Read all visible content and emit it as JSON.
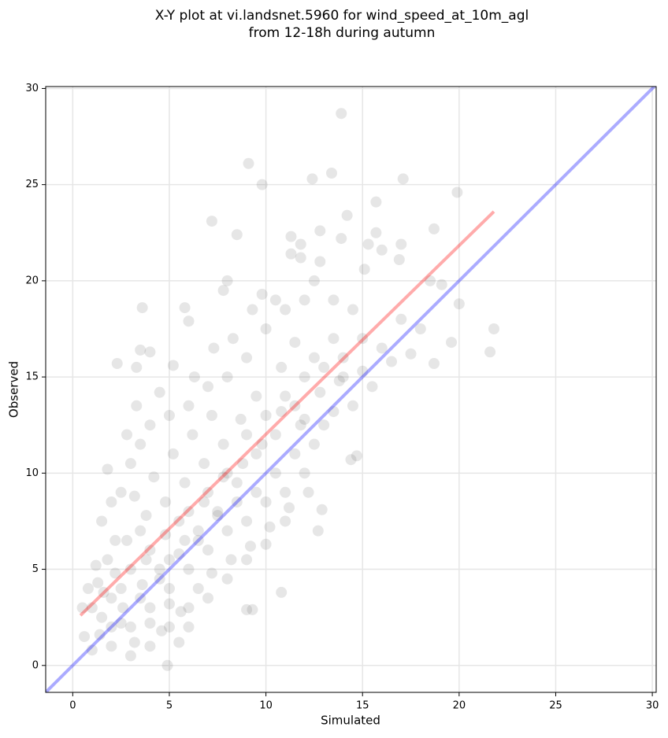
{
  "chart_data": {
    "type": "scatter",
    "title": [
      "X-Y plot at vi.landsnet.5960 for wind_speed_at_10m_agl",
      "from 12-18h during autumn"
    ],
    "x_label": "Simulated",
    "y_label": "Observed",
    "xlim": [
      -1.4,
      30.2
    ],
    "ylim": [
      -1.4,
      30.1
    ],
    "xticks": [
      0,
      5,
      10,
      15,
      20,
      25,
      30
    ],
    "yticks": [
      0,
      5,
      10,
      15,
      20,
      25,
      30
    ],
    "grid": true,
    "point_color": "#555555",
    "points": [
      [
        13.9,
        28.7
      ],
      [
        9.1,
        26.1
      ],
      [
        9.8,
        25.0
      ],
      [
        13.4,
        25.6
      ],
      [
        12.4,
        25.3
      ],
      [
        17.1,
        25.3
      ],
      [
        19.9,
        24.6
      ],
      [
        15.7,
        24.1
      ],
      [
        14.2,
        23.4
      ],
      [
        7.2,
        23.1
      ],
      [
        8.5,
        22.4
      ],
      [
        12.8,
        22.6
      ],
      [
        15.7,
        22.5
      ],
      [
        18.7,
        22.7
      ],
      [
        11.3,
        22.3
      ],
      [
        13.9,
        22.2
      ],
      [
        17.0,
        21.9
      ],
      [
        16.0,
        21.6
      ],
      [
        11.8,
        21.9
      ],
      [
        15.3,
        21.9
      ],
      [
        11.3,
        21.4
      ],
      [
        11.8,
        21.2
      ],
      [
        16.9,
        21.1
      ],
      [
        12.8,
        21.0
      ],
      [
        15.1,
        20.6
      ],
      [
        18.5,
        20.0
      ],
      [
        20.0,
        18.8
      ],
      [
        19.1,
        19.8
      ],
      [
        21.8,
        17.5
      ],
      [
        21.6,
        16.3
      ],
      [
        19.6,
        16.8
      ],
      [
        18.7,
        15.7
      ],
      [
        14.7,
        10.9
      ],
      [
        14.4,
        10.7
      ],
      [
        12.7,
        7.0
      ],
      [
        12.9,
        8.1
      ],
      [
        10.8,
        3.8
      ],
      [
        9.3,
        2.9
      ],
      [
        9.0,
        2.9
      ],
      [
        4.9,
        0.0
      ],
      [
        3.6,
        18.6
      ],
      [
        3.3,
        15.5
      ],
      [
        2.3,
        15.7
      ],
      [
        3.5,
        16.4
      ],
      [
        4.0,
        16.3
      ],
      [
        5.8,
        18.6
      ],
      [
        6.0,
        17.9
      ],
      [
        1.0,
        3.0
      ],
      [
        1.5,
        2.5
      ],
      [
        2.0,
        3.5
      ],
      [
        2.5,
        4.0
      ],
      [
        3.0,
        5.0
      ],
      [
        1.2,
        5.2
      ],
      [
        0.8,
        4.0
      ],
      [
        2.2,
        6.5
      ],
      [
        3.5,
        7.0
      ],
      [
        4.0,
        6.0
      ],
      [
        4.5,
        5.0
      ],
      [
        5.0,
        5.5
      ],
      [
        5.5,
        7.5
      ],
      [
        6.0,
        8.0
      ],
      [
        6.5,
        6.5
      ],
      [
        7.0,
        9.0
      ],
      [
        7.5,
        8.0
      ],
      [
        8.0,
        10.0
      ],
      [
        8.5,
        9.5
      ],
      [
        9.0,
        12.0
      ],
      [
        9.5,
        11.0
      ],
      [
        10.0,
        13.0
      ],
      [
        10.5,
        12.0
      ],
      [
        11.0,
        14.0
      ],
      [
        11.5,
        13.5
      ],
      [
        12.0,
        15.0
      ],
      [
        12.5,
        16.0
      ],
      [
        13.0,
        15.5
      ],
      [
        13.5,
        17.0
      ],
      [
        14.0,
        16.0
      ],
      [
        2.0,
        1.0
      ],
      [
        3.0,
        2.0
      ],
      [
        4.0,
        3.0
      ],
      [
        5.0,
        4.0
      ],
      [
        6.0,
        5.0
      ],
      [
        7.0,
        6.0
      ],
      [
        8.0,
        7.0
      ],
      [
        9.0,
        7.5
      ],
      [
        10.0,
        8.5
      ],
      [
        11.0,
        9.0
      ],
      [
        12.0,
        10.0
      ],
      [
        13.0,
        12.5
      ],
      [
        1.5,
        7.5
      ],
      [
        2.5,
        9.0
      ],
      [
        3.0,
        10.5
      ],
      [
        3.5,
        11.5
      ],
      [
        4.0,
        12.5
      ],
      [
        5.0,
        13.0
      ],
      [
        6.0,
        13.5
      ],
      [
        7.0,
        14.5
      ],
      [
        8.0,
        15.0
      ],
      [
        9.0,
        16.0
      ],
      [
        10.0,
        17.5
      ],
      [
        11.0,
        18.5
      ],
      [
        12.0,
        19.0
      ],
      [
        6.0,
        2.0
      ],
      [
        7.0,
        3.5
      ],
      [
        8.0,
        4.5
      ],
      [
        9.0,
        5.5
      ],
      [
        10.0,
        6.3
      ],
      [
        11.0,
        7.5
      ],
      [
        3.0,
        0.5
      ],
      [
        4.0,
        1.0
      ],
      [
        5.0,
        2.0
      ],
      [
        5.5,
        1.2
      ],
      [
        6.5,
        4.0
      ],
      [
        2.0,
        8.5
      ],
      [
        1.8,
        10.2
      ],
      [
        2.8,
        12.0
      ],
      [
        3.3,
        13.5
      ],
      [
        4.5,
        14.2
      ],
      [
        5.2,
        15.6
      ],
      [
        6.3,
        15.0
      ],
      [
        7.3,
        16.5
      ],
      [
        8.3,
        17.0
      ],
      [
        9.3,
        18.5
      ],
      [
        9.8,
        19.3
      ],
      [
        8.0,
        20.0
      ],
      [
        7.8,
        19.5
      ],
      [
        10.5,
        19.0
      ],
      [
        12.5,
        20.0
      ],
      [
        13.5,
        19.0
      ],
      [
        14.5,
        18.5
      ],
      [
        15.0,
        17.0
      ],
      [
        16.0,
        16.5
      ],
      [
        17.0,
        18.0
      ],
      [
        18.0,
        17.5
      ],
      [
        17.5,
        16.2
      ],
      [
        16.5,
        15.8
      ],
      [
        15.5,
        14.5
      ],
      [
        14.5,
        13.5
      ],
      [
        13.5,
        13.2
      ],
      [
        12.5,
        11.5
      ],
      [
        14.0,
        15.0
      ],
      [
        15.0,
        15.3
      ],
      [
        11.5,
        16.8
      ],
      [
        10.8,
        15.5
      ],
      [
        9.5,
        14.0
      ],
      [
        8.7,
        12.8
      ],
      [
        7.8,
        11.5
      ],
      [
        6.8,
        10.5
      ],
      [
        5.8,
        9.5
      ],
      [
        4.8,
        8.5
      ],
      [
        3.8,
        7.8
      ],
      [
        2.8,
        6.5
      ],
      [
        1.8,
        5.5
      ],
      [
        1.3,
        4.3
      ],
      [
        0.5,
        3.0
      ],
      [
        0.6,
        1.5
      ],
      [
        1.0,
        0.8
      ],
      [
        2.5,
        2.2
      ],
      [
        3.5,
        3.5
      ],
      [
        4.5,
        4.5
      ],
      [
        5.5,
        5.8
      ],
      [
        6.5,
        7.0
      ],
      [
        7.5,
        7.8
      ],
      [
        8.5,
        8.5
      ],
      [
        9.5,
        9.0
      ],
      [
        10.5,
        10.0
      ],
      [
        11.5,
        11.0
      ],
      [
        12.0,
        12.8
      ],
      [
        4.2,
        9.8
      ],
      [
        5.2,
        11.0
      ],
      [
        6.2,
        12.0
      ],
      [
        7.2,
        13.0
      ],
      [
        3.2,
        8.8
      ],
      [
        2.2,
        4.8
      ],
      [
        1.6,
        3.8
      ],
      [
        3.8,
        5.5
      ],
      [
        4.8,
        6.8
      ],
      [
        5.8,
        6.5
      ],
      [
        6.8,
        8.5
      ],
      [
        7.8,
        9.8
      ],
      [
        8.8,
        10.5
      ],
      [
        9.8,
        11.5
      ],
      [
        10.8,
        13.2
      ],
      [
        11.8,
        12.5
      ],
      [
        12.8,
        14.2
      ],
      [
        13.8,
        14.8
      ],
      [
        4.0,
        2.2
      ],
      [
        5.0,
        3.2
      ],
      [
        6.0,
        3.0
      ],
      [
        7.2,
        4.8
      ],
      [
        8.2,
        5.5
      ],
      [
        9.2,
        6.2
      ],
      [
        10.2,
        7.2
      ],
      [
        11.2,
        8.2
      ],
      [
        12.2,
        9.0
      ],
      [
        2.6,
        3.0
      ],
      [
        3.6,
        4.2
      ],
      [
        2.0,
        2.0
      ],
      [
        1.4,
        1.6
      ],
      [
        3.2,
        1.2
      ],
      [
        4.6,
        1.8
      ],
      [
        5.6,
        2.8
      ]
    ],
    "lines": [
      {
        "color": "#0000ff",
        "x": [
          -1.4,
          30.2
        ],
        "y": [
          -1.4,
          30.2
        ]
      },
      {
        "color": "#ff0000",
        "x": [
          0.4,
          21.8
        ],
        "y": [
          2.6,
          23.6
        ]
      }
    ]
  }
}
